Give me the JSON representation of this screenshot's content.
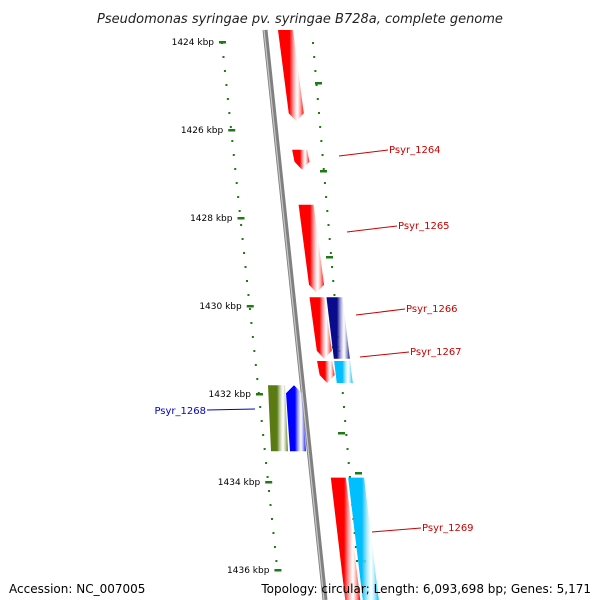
{
  "title": "Pseudomonas syringae pv. syringae B728a, complete genome",
  "footer": {
    "accession": "Accession: NC_007005",
    "topology": "Topology: circular; Length: 6,093,698 bp; Genes: 5,171"
  },
  "colors": {
    "ruler": "#1e7a12",
    "backbone": "#808080",
    "forward_gene": "#ff0000",
    "reverse_gene": "#00bfff",
    "navy_gene": "#0a0a8c",
    "blue_gene": "#0000ff",
    "olive_gene": "#5a7a14",
    "label_red": "#cc0000",
    "label_blue": "#0000cc"
  },
  "ruler": {
    "ticks": [
      {
        "label": "1424 kbp",
        "kbp": 1424
      },
      {
        "label": "1426 kbp",
        "kbp": 1426
      },
      {
        "label": "1428 kbp",
        "kbp": 1428
      },
      {
        "label": "1430 kbp",
        "kbp": 1430
      },
      {
        "label": "1432 kbp",
        "kbp": 1432
      },
      {
        "label": "1434 kbp",
        "kbp": 1434
      },
      {
        "label": "1436 kbp",
        "kbp": 1436
      }
    ]
  },
  "genes": [
    {
      "name": "",
      "color": "forward_gene",
      "track": "fwd",
      "start": 1423.0,
      "end": 1425.8
    },
    {
      "name": "Psyr_1264",
      "color": "forward_gene",
      "track": "fwd",
      "start": 1426.45,
      "end": 1426.9
    },
    {
      "name": "Psyr_1265",
      "color": "forward_gene",
      "track": "fwd",
      "start": 1427.7,
      "end": 1429.7
    },
    {
      "name": "Psyr_1266",
      "color": "forward_gene",
      "track": "fwd",
      "start": 1429.8,
      "end": 1431.2
    },
    {
      "name": "",
      "color": "navy_gene",
      "track": "rev",
      "start": 1429.8,
      "end": 1431.2
    },
    {
      "name": "",
      "color": "forward_gene",
      "track": "fwd",
      "start": 1431.25,
      "end": 1431.75
    },
    {
      "name": "Psyr_1267",
      "color": "reverse_gene",
      "track": "rev",
      "start": 1431.25,
      "end": 1431.75
    },
    {
      "name": "",
      "color": "blue_gene",
      "track": "inner",
      "start": 1431.8,
      "end": 1433.3
    },
    {
      "name": "Psyr_1268",
      "color": "olive_gene",
      "track": "outer",
      "start": 1431.8,
      "end": 1433.3
    },
    {
      "name": "",
      "color": "forward_gene",
      "track": "fwd",
      "start": 1433.9,
      "end": 1437.0
    },
    {
      "name": "Psyr_1269",
      "color": "reverse_gene",
      "track": "rev",
      "start": 1433.9,
      "end": 1437.0
    }
  ]
}
